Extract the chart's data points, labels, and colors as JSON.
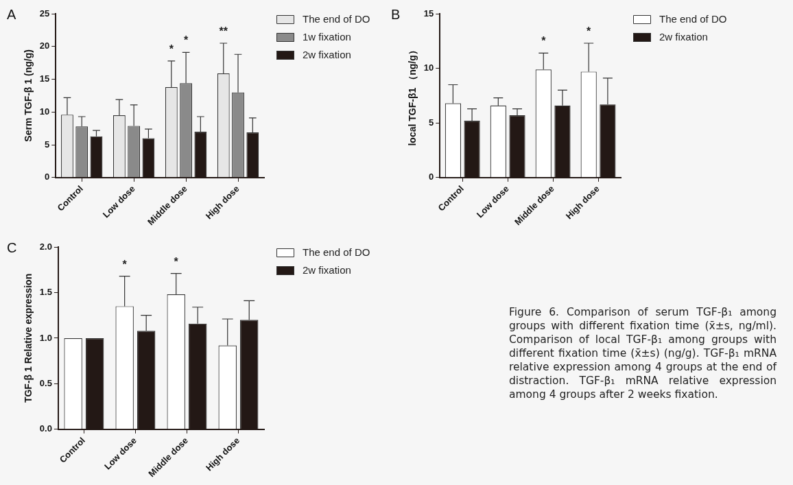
{
  "chart_data": [
    {
      "type": "bar",
      "title": "A",
      "ylabel": "Serm TGF-β 1 (ng/g)",
      "categories": [
        "Control",
        "Low dose",
        "Middle dose",
        "High dose"
      ],
      "ylim": [
        0,
        25
      ],
      "yticks": [
        0,
        5,
        10,
        15,
        20,
        25
      ],
      "grid": false,
      "legend": "top right",
      "series": [
        {
          "name": "The end of DO",
          "color": "#e6e6e6",
          "values": [
            9.6,
            9.5,
            13.8,
            15.9
          ],
          "errors": [
            2.6,
            2.4,
            4.0,
            4.6
          ]
        },
        {
          "name": "1w fixation",
          "color": "#8a8a8a",
          "values": [
            7.8,
            7.9,
            14.4,
            13.0
          ],
          "errors": [
            1.5,
            3.2,
            4.7,
            5.8
          ]
        },
        {
          "name": "2w fixation",
          "color": "#231815",
          "values": [
            6.3,
            6.0,
            7.0,
            6.9
          ],
          "errors": [
            0.9,
            1.4,
            2.3,
            2.2
          ]
        }
      ],
      "annotations": [
        "*",
        "*",
        "**"
      ]
    },
    {
      "type": "bar",
      "title": "B",
      "ylabel": "local TGF-β1 （ng/g）",
      "categories": [
        "Control",
        "Low dose",
        "Middle dose",
        "High dose"
      ],
      "ylim": [
        0,
        15
      ],
      "yticks": [
        0,
        5,
        10,
        15
      ],
      "grid": false,
      "legend": "top right",
      "series": [
        {
          "name": "The end of DO",
          "color": "#ffffff",
          "values": [
            6.8,
            6.6,
            9.9,
            9.7
          ],
          "errors": [
            1.7,
            0.7,
            1.5,
            2.6
          ]
        },
        {
          "name": "2w fixation",
          "color": "#231815",
          "values": [
            5.2,
            5.7,
            6.6,
            6.7
          ],
          "errors": [
            1.1,
            0.6,
            1.4,
            2.4
          ]
        }
      ],
      "annotations": [
        "*",
        "*"
      ]
    },
    {
      "type": "bar",
      "title": "C",
      "ylabel": "TGF-β 1 Relative expression",
      "categories": [
        "Control",
        "Low dose",
        "Middle dose",
        "High dose"
      ],
      "ylim": [
        0,
        2.0
      ],
      "yticks": [
        {
          "value": 0,
          "label": "0.0"
        },
        {
          "value": 0.5,
          "label": "0.5"
        },
        {
          "value": 1.0,
          "label": "1.0"
        },
        {
          "value": 1.5,
          "label": "1.5"
        },
        {
          "value": 2.0,
          "label": "2.0"
        }
      ],
      "grid": false,
      "legend": "top right",
      "series": [
        {
          "name": "The end of DO",
          "color": "#ffffff",
          "values": [
            1.0,
            1.35,
            1.48,
            0.92
          ],
          "errors": [
            null,
            0.33,
            0.23,
            0.29
          ]
        },
        {
          "name": "2w fixation",
          "color": "#231815",
          "values": [
            1.0,
            1.08,
            1.16,
            1.2
          ],
          "errors": [
            null,
            0.17,
            0.18,
            0.21
          ]
        }
      ],
      "annotations": [
        "*",
        "*",
        "Figure 6. Comparison of serum TGF-β₁ among groups with different fixation time (x̄±s, ng/ml). Comparison of local TGF-β₁ among groups with different fixation time (x̄±s) (ng/g). TGF-β₁ mRNA relative expression among 4 groups at the end of distraction. TGF-β₁ mRNA relative expression among 4 groups after 2 weeks fixation."
      ]
    }
  ]
}
